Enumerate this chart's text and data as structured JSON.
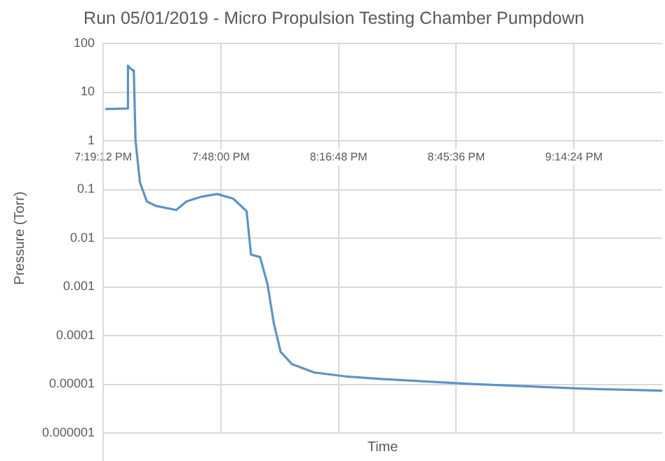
{
  "chart_data": {
    "type": "line",
    "title": "Run 05/01/2019 - Micro Propulsion Testing Chamber Pumpdown",
    "xlabel": "Time",
    "ylabel": "Pressure (Torr)",
    "x": [
      19.329,
      19.42,
      19.421,
      19.43,
      19.44,
      19.445,
      19.452,
      19.47,
      19.498,
      19.535,
      19.618,
      19.66,
      19.72,
      19.785,
      19.85,
      19.905,
      19.923,
      19.96,
      19.99,
      20.016,
      20.044,
      20.09,
      20.182,
      20.31,
      20.44,
      20.81,
      21.048,
      21.29,
      21.6
    ],
    "series": [
      {
        "color": "#5b93c7",
        "values": [
          4.5,
          4.6,
          35,
          31,
          28,
          28,
          1.0,
          0.14,
          0.057,
          0.046,
          0.038,
          0.057,
          0.071,
          0.081,
          0.065,
          0.036,
          0.0046,
          0.0041,
          0.00115,
          0.00018,
          4.6e-05,
          2.6e-05,
          1.74e-05,
          1.45e-05,
          1.3e-05,
          1.02e-05,
          9.1e-06,
          8.1e-06,
          7.4e-06
        ]
      }
    ],
    "xlim": [
      19.32,
      21.6
    ],
    "xticks": [
      {
        "value": 19.32,
        "label": "7:19:12 PM"
      },
      {
        "value": 19.8,
        "label": "7:48:00 PM"
      },
      {
        "value": 20.28,
        "label": "8:16:48 PM"
      },
      {
        "value": 20.76,
        "label": "8:45:36 PM"
      },
      {
        "value": 21.24,
        "label": "9:14:24 PM"
      }
    ],
    "ylim": [
      1e-06,
      100
    ],
    "yticks": [
      {
        "value": 1e-06,
        "label": "0.000001"
      },
      {
        "value": 1e-05,
        "label": "0.00001"
      },
      0.0001,
      0.001,
      0.01,
      0.1,
      1,
      10,
      100
    ],
    "log": true,
    "grid": true,
    "legend": false,
    "marker": "none",
    "line_style": "solid"
  }
}
